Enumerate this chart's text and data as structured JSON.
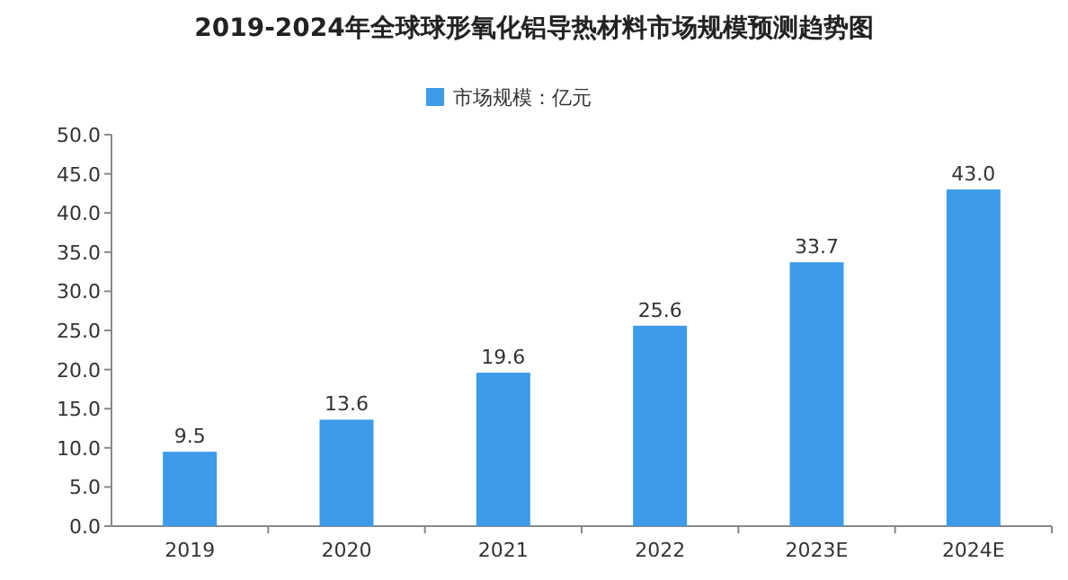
{
  "chart_data": {
    "type": "bar",
    "title": "2019-2024年全球球形氧化铝导热材料市场规模预测趋势图",
    "categories": [
      "2019",
      "2020",
      "2021",
      "2022",
      "2023E",
      "2024E"
    ],
    "series": [
      {
        "name": "市场规模：亿元",
        "color": "#3d9be9",
        "values": [
          9.5,
          13.6,
          19.6,
          25.6,
          33.7,
          43.0
        ],
        "value_labels": [
          "9.5",
          "13.6",
          "19.6",
          "25.6",
          "33.7",
          "43.0"
        ]
      }
    ],
    "ylim": [
      0,
      50
    ],
    "yticks": [
      {
        "value": 0,
        "label": "0.0"
      },
      {
        "value": 5,
        "label": "5.0"
      },
      {
        "value": 10,
        "label": "10.0"
      },
      {
        "value": 15,
        "label": "15.0"
      },
      {
        "value": 20,
        "label": "20.0"
      },
      {
        "value": 25,
        "label": "25.0"
      },
      {
        "value": 30,
        "label": "30.0"
      },
      {
        "value": 35,
        "label": "35.0"
      },
      {
        "value": 40,
        "label": "40.0"
      },
      {
        "value": 45,
        "label": "45.0"
      },
      {
        "value": 50,
        "label": "50.0"
      }
    ],
    "legend": "top",
    "grid": false
  }
}
